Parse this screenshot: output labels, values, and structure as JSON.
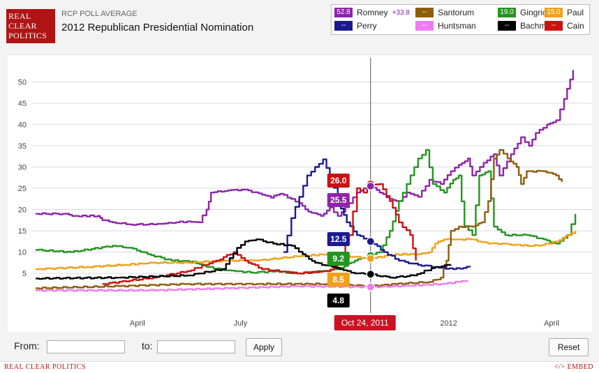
{
  "header": {
    "logo_lines": [
      "REAL",
      "CLEAR",
      "POLITICS"
    ],
    "poll_type": "RCP POLL AVERAGE",
    "title": "2012 Republican Presidential Nomination"
  },
  "legend": [
    {
      "name": "Romney",
      "value": "52.8",
      "change": "+33.8",
      "color": "#8e24aa"
    },
    {
      "name": "Santorum",
      "value": "--",
      "change": "",
      "color": "#8d5d0c"
    },
    {
      "name": "Gingrich",
      "value": "19.0",
      "change": "",
      "color": "#23951f"
    },
    {
      "name": "Paul",
      "value": "15.0",
      "change": "",
      "color": "#f0a11c"
    },
    {
      "name": "Perry",
      "value": "--",
      "change": "",
      "color": "#1a1a8f"
    },
    {
      "name": "Huntsman",
      "value": "--",
      "change": "",
      "color": "#ee7cf0"
    },
    {
      "name": "Bachmann",
      "value": "--",
      "change": "",
      "color": "#000000"
    },
    {
      "name": "Cain",
      "value": "--",
      "change": "",
      "color": "#cc1111"
    }
  ],
  "chart_data": {
    "type": "line",
    "title": "2012 Republican Presidential Nomination",
    "xlabel": "",
    "ylabel": "",
    "ylim": [
      -4,
      55
    ],
    "y_ticks": [
      5,
      10,
      15,
      20,
      25,
      30,
      35,
      40,
      45,
      50
    ],
    "x_tick_labels": [
      {
        "label": "April",
        "date": "2011-04-01"
      },
      {
        "label": "July",
        "date": "2011-07-01"
      },
      {
        "label": "Oct",
        "date": "2011-10-01"
      },
      {
        "label": "2012",
        "date": "2012-01-01"
      },
      {
        "label": "April",
        "date": "2012-04-01"
      }
    ],
    "x_range": [
      "2011-01-01",
      "2012-04-25"
    ],
    "grid": true,
    "crosshair": {
      "date": "Oct 24, 2011",
      "iso": "2011-10-24"
    },
    "tooltip_values": [
      {
        "name": "Cain",
        "value": "26.0"
      },
      {
        "name": "Romney",
        "value": "25.5"
      },
      {
        "name": "Perry",
        "value": "12.5"
      },
      {
        "name": "Gingrich",
        "value": "9.2"
      },
      {
        "name": "Paul",
        "value": "8.5"
      },
      {
        "name": "Bachmann",
        "value": "4.8"
      }
    ],
    "series": [
      {
        "name": "Romney",
        "color": "#8e24aa",
        "points": [
          [
            "2011-01-01",
            19
          ],
          [
            "2011-01-25",
            19
          ],
          [
            "2011-02-05",
            18.5
          ],
          [
            "2011-02-25",
            18.5
          ],
          [
            "2011-03-01",
            17.5
          ],
          [
            "2011-03-10",
            17
          ],
          [
            "2011-03-25",
            16.5
          ],
          [
            "2011-04-15",
            16.5
          ],
          [
            "2011-05-05",
            17
          ],
          [
            "2011-05-15",
            17.2
          ],
          [
            "2011-05-25",
            17
          ],
          [
            "2011-06-01",
            20
          ],
          [
            "2011-06-05",
            24
          ],
          [
            "2011-06-20",
            24.5
          ],
          [
            "2011-07-05",
            24.7
          ],
          [
            "2011-07-20",
            23.5
          ],
          [
            "2011-07-28",
            22.8
          ],
          [
            "2011-08-05",
            23.7
          ],
          [
            "2011-08-15",
            22.5
          ],
          [
            "2011-08-22",
            21.5
          ],
          [
            "2011-08-30",
            19.5
          ],
          [
            "2011-09-10",
            18.5
          ],
          [
            "2011-09-18",
            20.5
          ],
          [
            "2011-09-25",
            18.5
          ],
          [
            "2011-10-05",
            21.5
          ],
          [
            "2011-10-12",
            24
          ],
          [
            "2011-10-18",
            25
          ],
          [
            "2011-10-24",
            25.5
          ],
          [
            "2011-11-01",
            24
          ],
          [
            "2011-11-10",
            22.5
          ],
          [
            "2011-11-18",
            22
          ],
          [
            "2011-11-25",
            24
          ],
          [
            "2011-12-05",
            23
          ],
          [
            "2011-12-15",
            27
          ],
          [
            "2011-12-25",
            26
          ],
          [
            "2012-01-03",
            29
          ],
          [
            "2012-01-10",
            30.5
          ],
          [
            "2012-01-18",
            32
          ],
          [
            "2012-01-22",
            28
          ],
          [
            "2012-02-01",
            31
          ],
          [
            "2012-02-10",
            33
          ],
          [
            "2012-02-15",
            28
          ],
          [
            "2012-02-25",
            33
          ],
          [
            "2012-03-05",
            37
          ],
          [
            "2012-03-12",
            35
          ],
          [
            "2012-03-18",
            38
          ],
          [
            "2012-03-28",
            40
          ],
          [
            "2012-04-05",
            41
          ],
          [
            "2012-04-12",
            46
          ],
          [
            "2012-04-20",
            52.8
          ]
        ]
      },
      {
        "name": "Gingrich",
        "color": "#23951f",
        "points": [
          [
            "2011-01-01",
            10.5
          ],
          [
            "2011-02-01",
            10
          ],
          [
            "2011-03-10",
            11.5
          ],
          [
            "2011-03-25",
            11
          ],
          [
            "2011-04-10",
            9.5
          ],
          [
            "2011-05-01",
            8
          ],
          [
            "2011-05-20",
            7.8
          ],
          [
            "2011-06-01",
            6.5
          ],
          [
            "2011-06-20",
            5.7
          ],
          [
            "2011-07-10",
            5.2
          ],
          [
            "2011-08-01",
            5.5
          ],
          [
            "2011-08-20",
            5
          ],
          [
            "2011-09-10",
            5.5
          ],
          [
            "2011-09-25",
            6
          ],
          [
            "2011-10-10",
            8
          ],
          [
            "2011-10-24",
            9.2
          ],
          [
            "2011-11-01",
            10
          ],
          [
            "2011-11-10",
            15
          ],
          [
            "2011-11-18",
            22
          ],
          [
            "2011-11-25",
            26
          ],
          [
            "2011-12-05",
            32
          ],
          [
            "2011-12-12",
            34
          ],
          [
            "2011-12-18",
            26
          ],
          [
            "2011-12-28",
            24
          ],
          [
            "2012-01-05",
            27
          ],
          [
            "2012-01-10",
            28
          ],
          [
            "2012-01-15",
            16
          ],
          [
            "2012-01-22",
            14
          ],
          [
            "2012-01-28",
            28
          ],
          [
            "2012-02-05",
            29
          ],
          [
            "2012-02-10",
            16
          ],
          [
            "2012-02-20",
            14
          ],
          [
            "2012-03-10",
            14
          ],
          [
            "2012-03-25",
            13
          ],
          [
            "2012-04-05",
            12
          ],
          [
            "2012-04-15",
            14
          ],
          [
            "2012-04-22",
            19
          ]
        ]
      },
      {
        "name": "Paul",
        "color": "#f0a11c",
        "points": [
          [
            "2011-01-01",
            6
          ],
          [
            "2011-02-15",
            6.5
          ],
          [
            "2011-03-20",
            7
          ],
          [
            "2011-04-15",
            7.5
          ],
          [
            "2011-05-15",
            7.5
          ],
          [
            "2011-06-15",
            8
          ],
          [
            "2011-07-15",
            8
          ],
          [
            "2011-08-20",
            9
          ],
          [
            "2011-09-15",
            9.5
          ],
          [
            "2011-10-24",
            8.5
          ],
          [
            "2011-11-15",
            9.5
          ],
          [
            "2011-12-05",
            9.5
          ],
          [
            "2011-12-15",
            10
          ],
          [
            "2011-12-20",
            12
          ],
          [
            "2011-12-28",
            13
          ],
          [
            "2012-01-10",
            13
          ],
          [
            "2012-01-20",
            13
          ],
          [
            "2012-02-05",
            12
          ],
          [
            "2012-02-20",
            12
          ],
          [
            "2012-03-05",
            11.5
          ],
          [
            "2012-03-20",
            11.5
          ],
          [
            "2012-04-05",
            12.5
          ],
          [
            "2012-04-22",
            15
          ]
        ]
      },
      {
        "name": "Santorum",
        "color": "#8d5d0c",
        "points": [
          [
            "2011-01-01",
            1.5
          ],
          [
            "2011-03-15",
            2
          ],
          [
            "2011-05-15",
            2.5
          ],
          [
            "2011-07-15",
            2.5
          ],
          [
            "2011-09-15",
            2.5
          ],
          [
            "2011-10-24",
            2
          ],
          [
            "2011-11-15",
            2.5
          ],
          [
            "2011-12-15",
            3
          ],
          [
            "2011-12-25",
            4
          ],
          [
            "2011-12-30",
            8
          ],
          [
            "2012-01-03",
            15
          ],
          [
            "2012-01-10",
            16
          ],
          [
            "2012-01-22",
            16
          ],
          [
            "2012-01-30",
            17
          ],
          [
            "2012-02-05",
            22
          ],
          [
            "2012-02-10",
            32
          ],
          [
            "2012-02-15",
            34
          ],
          [
            "2012-02-22",
            32
          ],
          [
            "2012-03-01",
            30
          ],
          [
            "2012-03-05",
            26
          ],
          [
            "2012-03-10",
            29
          ],
          [
            "2012-03-25",
            29
          ],
          [
            "2012-04-05",
            28
          ],
          [
            "2012-04-10",
            26.5
          ]
        ]
      },
      {
        "name": "Perry",
        "color": "#1a1a8f",
        "points": [
          [
            "2011-08-08",
            10
          ],
          [
            "2011-08-15",
            18
          ],
          [
            "2011-08-22",
            23
          ],
          [
            "2011-08-29",
            28
          ],
          [
            "2011-09-05",
            30
          ],
          [
            "2011-09-12",
            31.8
          ],
          [
            "2011-09-18",
            28
          ],
          [
            "2011-09-25",
            22
          ],
          [
            "2011-10-03",
            17
          ],
          [
            "2011-10-12",
            14
          ],
          [
            "2011-10-24",
            12.5
          ],
          [
            "2011-11-05",
            10
          ],
          [
            "2011-11-18",
            8
          ],
          [
            "2011-12-05",
            7
          ],
          [
            "2011-12-20",
            6.5
          ],
          [
            "2012-01-05",
            6
          ],
          [
            "2012-01-20",
            6.5
          ]
        ]
      },
      {
        "name": "Cain",
        "color": "#cc1111",
        "points": [
          [
            "2011-03-01",
            2.5
          ],
          [
            "2011-04-15",
            4
          ],
          [
            "2011-05-15",
            5.5
          ],
          [
            "2011-06-10",
            8
          ],
          [
            "2011-06-25",
            10
          ],
          [
            "2011-07-05",
            8
          ],
          [
            "2011-07-20",
            6
          ],
          [
            "2011-08-20",
            5
          ],
          [
            "2011-09-15",
            5.5
          ],
          [
            "2011-09-25",
            7
          ],
          [
            "2011-10-05",
            14
          ],
          [
            "2011-10-12",
            25
          ],
          [
            "2011-10-18",
            24
          ],
          [
            "2011-10-24",
            26
          ],
          [
            "2011-11-01",
            26
          ],
          [
            "2011-11-10",
            22
          ],
          [
            "2011-11-18",
            17
          ],
          [
            "2011-11-28",
            14
          ],
          [
            "2011-12-03",
            8
          ]
        ]
      },
      {
        "name": "Bachmann",
        "color": "#000000",
        "points": [
          [
            "2011-01-01",
            3.8
          ],
          [
            "2011-03-15",
            4
          ],
          [
            "2011-05-15",
            4.5
          ],
          [
            "2011-06-15",
            6
          ],
          [
            "2011-06-28",
            11
          ],
          [
            "2011-07-05",
            12.5
          ],
          [
            "2011-07-15",
            13
          ],
          [
            "2011-07-30",
            12
          ],
          [
            "2011-08-15",
            11.5
          ],
          [
            "2011-08-25",
            9.5
          ],
          [
            "2011-09-05",
            7.5
          ],
          [
            "2011-09-20",
            6.5
          ],
          [
            "2011-10-10",
            5
          ],
          [
            "2011-10-24",
            4.8
          ],
          [
            "2011-11-10",
            4
          ],
          [
            "2011-12-01",
            4.5
          ],
          [
            "2011-12-20",
            6.5
          ],
          [
            "2012-01-03",
            7
          ]
        ]
      },
      {
        "name": "Huntsman",
        "color": "#ee7cf0",
        "points": [
          [
            "2011-01-01",
            1
          ],
          [
            "2011-04-15",
            1
          ],
          [
            "2011-06-20",
            1.5
          ],
          [
            "2011-08-20",
            2
          ],
          [
            "2011-10-24",
            1.8
          ],
          [
            "2011-11-20",
            2
          ],
          [
            "2011-12-25",
            2.5
          ],
          [
            "2012-01-10",
            3
          ],
          [
            "2012-01-18",
            3.2
          ]
        ]
      }
    ]
  },
  "controls": {
    "from_label": "From:",
    "to_label": "to:",
    "from_value": "",
    "to_value": "",
    "apply_label": "Apply",
    "reset_label": "Reset"
  },
  "footer": {
    "brand": "REAL CLEAR POLITICS",
    "embed": "</> EMBED"
  }
}
